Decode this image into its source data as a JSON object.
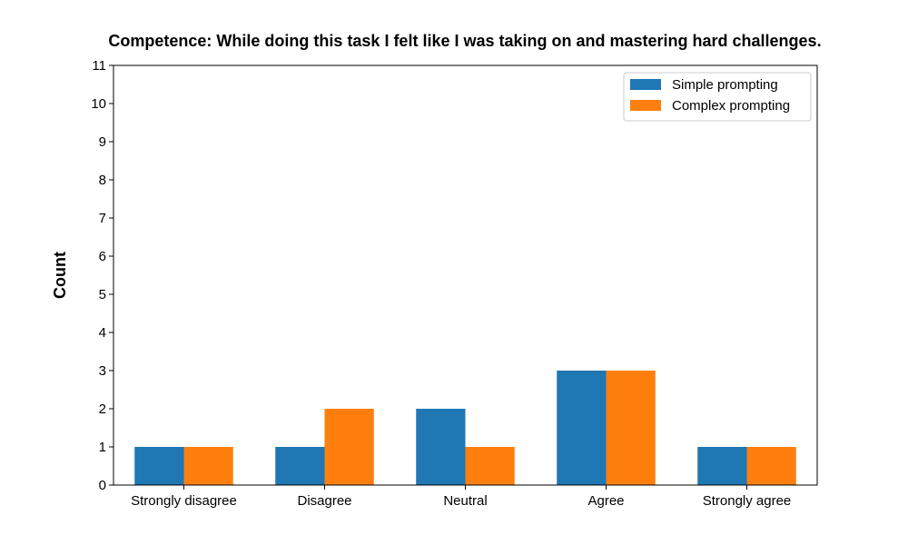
{
  "chart_data": {
    "type": "bar",
    "title": "Competence: While doing this task I felt like I was taking on and mastering hard challenges.",
    "xlabel": "",
    "ylabel": "Count",
    "categories": [
      "Strongly disagree",
      "Disagree",
      "Neutral",
      "Agree",
      "Strongly agree"
    ],
    "series": [
      {
        "name": "Simple prompting",
        "color": "#1f77b4",
        "values": [
          1,
          1,
          2,
          3,
          1
        ]
      },
      {
        "name": "Complex prompting",
        "color": "#ff7f0e",
        "values": [
          1,
          2,
          1,
          3,
          1
        ]
      }
    ],
    "ylim": [
      0,
      11
    ],
    "yticks": [
      0,
      1,
      2,
      3,
      4,
      5,
      6,
      7,
      8,
      9,
      10,
      11
    ],
    "grid": false,
    "legend": "top-right"
  }
}
